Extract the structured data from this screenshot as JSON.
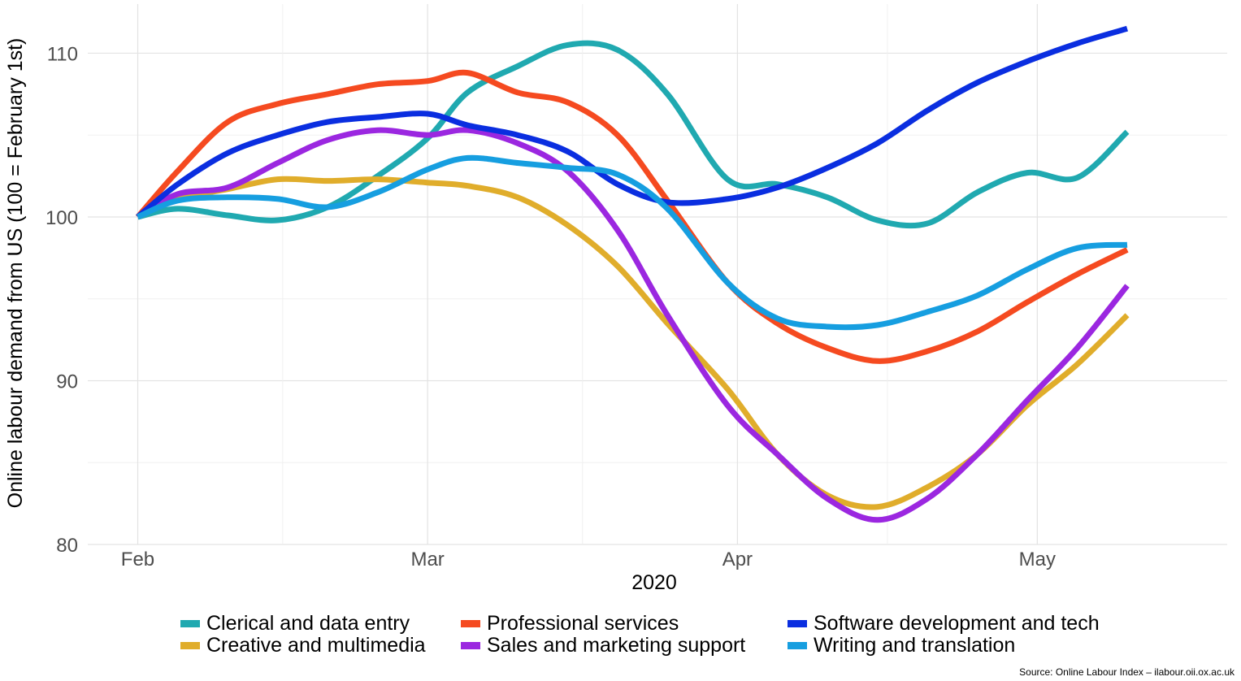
{
  "chart_data": {
    "type": "line",
    "xlabel": "2020",
    "ylabel": "Online labour demand from US (100 = February 1st)",
    "x_ticks": [
      {
        "label": "Feb",
        "date": "2020-02-01"
      },
      {
        "label": "Mar",
        "date": "2020-03-01"
      },
      {
        "label": "Apr",
        "date": "2020-04-01"
      },
      {
        "label": "May",
        "date": "2020-05-01"
      }
    ],
    "xlim": [
      "2020-01-27",
      "2020-05-20"
    ],
    "ylim": [
      80,
      113
    ],
    "y_ticks": [
      80,
      90,
      100,
      110
    ],
    "grid": true,
    "legend_position": "bottom",
    "x": [
      "2020-02-01",
      "2020-02-05",
      "2020-02-10",
      "2020-02-15",
      "2020-02-20",
      "2020-02-25",
      "2020-03-01",
      "2020-03-05",
      "2020-03-10",
      "2020-03-15",
      "2020-03-20",
      "2020-03-25",
      "2020-03-31",
      "2020-04-05",
      "2020-04-10",
      "2020-04-15",
      "2020-04-20",
      "2020-04-25",
      "2020-04-30",
      "2020-05-05",
      "2020-05-10"
    ],
    "series": [
      {
        "name": "Clerical and data entry",
        "color": "#20a9b0",
        "values": [
          100,
          100.5,
          100.1,
          99.8,
          100.6,
          102.5,
          104.8,
          107.6,
          109.2,
          110.5,
          110.2,
          107.5,
          102.3,
          102.0,
          101.2,
          99.8,
          99.6,
          101.5,
          102.7,
          102.4,
          105.2
        ]
      },
      {
        "name": "Creative and multimedia",
        "color": "#e0ad2b",
        "values": [
          100,
          101.1,
          101.7,
          102.3,
          102.2,
          102.3,
          102.1,
          101.9,
          101.2,
          99.5,
          97.0,
          93.5,
          89.5,
          85.5,
          83.0,
          82.3,
          83.5,
          85.5,
          88.5,
          91.0,
          94.0
        ]
      },
      {
        "name": "Professional services",
        "color": "#f54a20",
        "values": [
          100,
          102.8,
          105.8,
          106.9,
          107.5,
          108.1,
          108.3,
          108.8,
          107.6,
          107.0,
          105.0,
          101.0,
          96.0,
          93.5,
          92.0,
          91.2,
          91.8,
          93.0,
          94.8,
          96.5,
          98.0
        ]
      },
      {
        "name": "Sales and marketing support",
        "color": "#9b27e0",
        "values": [
          100,
          101.4,
          101.8,
          103.3,
          104.7,
          105.3,
          105.0,
          105.3,
          104.5,
          102.8,
          99.2,
          94.0,
          88.5,
          85.5,
          82.8,
          81.5,
          82.8,
          85.5,
          88.8,
          92.0,
          95.8
        ]
      },
      {
        "name": "Software development and tech",
        "color": "#0a2ee0",
        "values": [
          100,
          102.0,
          103.9,
          105.0,
          105.8,
          106.1,
          106.3,
          105.6,
          105.0,
          104.0,
          102.0,
          100.9,
          101.1,
          101.8,
          103.0,
          104.5,
          106.5,
          108.2,
          109.5,
          110.6,
          111.5
        ]
      },
      {
        "name": "Writing and translation",
        "color": "#169ee0",
        "values": [
          100,
          101.0,
          101.2,
          101.1,
          100.6,
          101.5,
          102.9,
          103.6,
          103.3,
          103.0,
          102.6,
          100.5,
          96.0,
          93.8,
          93.3,
          93.4,
          94.2,
          95.2,
          96.8,
          98.1,
          98.3
        ]
      }
    ]
  },
  "source_text": "Source: Online Labour Index – ilabour.oii.ox.ac.uk"
}
